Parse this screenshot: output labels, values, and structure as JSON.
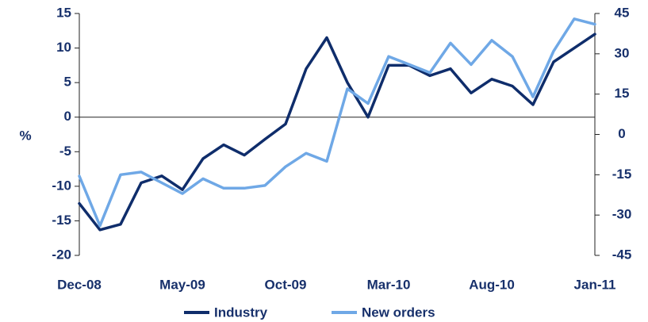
{
  "chart_data": {
    "type": "line",
    "categories": [
      "Dec-08",
      null,
      null,
      null,
      null,
      "May-09",
      null,
      null,
      null,
      null,
      "Oct-09",
      null,
      null,
      null,
      null,
      "Mar-10",
      null,
      null,
      null,
      null,
      "Aug-10",
      null,
      null,
      null,
      null,
      "Jan-11"
    ],
    "y_label": "%",
    "series": [
      {
        "name": "Industry",
        "color": "#0f2d6b",
        "axis": "y",
        "values": [
          -12.5,
          -16.3,
          -15.5,
          -9.5,
          -8.5,
          -10.5,
          -6,
          -4,
          -5.5,
          -3.2,
          -1,
          7,
          11.5,
          5,
          0,
          7.5,
          7.5,
          6,
          7,
          3.5,
          5.5,
          4.5,
          1.8,
          8,
          10,
          12
        ]
      },
      {
        "name": "New orders",
        "color": "#6fa8e6",
        "axis": "y2",
        "values": [
          -15.5,
          -34,
          -15,
          -14,
          -18,
          -22,
          -16.5,
          -20,
          -20,
          -19,
          -12,
          -7,
          -10,
          17,
          11.5,
          29,
          26,
          23,
          34,
          26,
          35,
          29,
          14,
          31,
          43,
          41
        ]
      }
    ],
    "ylim": [
      -20,
      15
    ],
    "yticks": [
      -20,
      -15,
      -10,
      -5,
      0,
      5,
      10,
      15
    ],
    "y2lim": [
      -45,
      45
    ],
    "y2ticks": [
      -45,
      -30,
      -15,
      0,
      15,
      30,
      45
    ],
    "legend": "bottom"
  }
}
